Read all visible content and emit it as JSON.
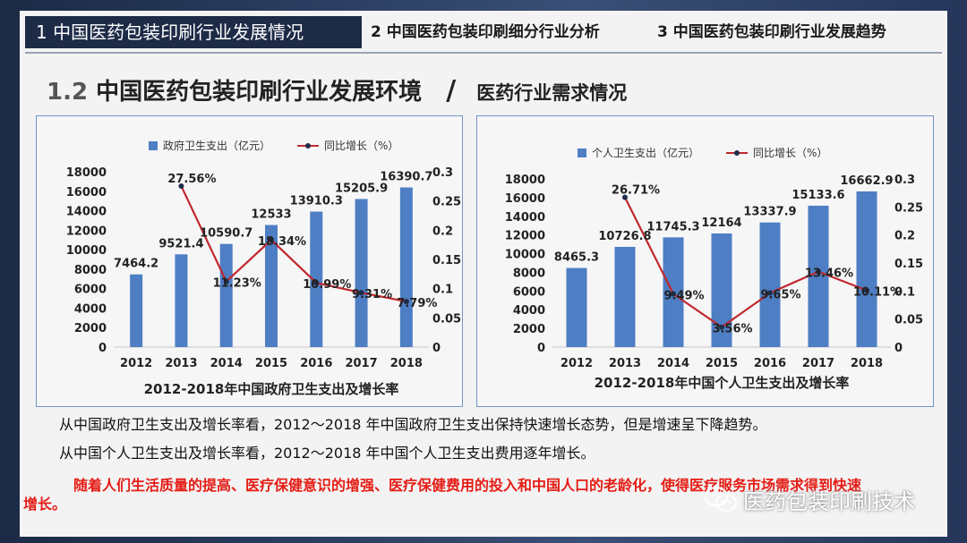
{
  "header": {
    "tabs": [
      {
        "label": "1  中国医药包装印刷行业发展情况",
        "active": true
      },
      {
        "label": "2  中国医药包装印刷细分行业分析",
        "active": false
      },
      {
        "label": "3  中国医药包装印刷行业发展趋势",
        "active": false
      }
    ]
  },
  "section": {
    "number": "1.2",
    "title": "中国医药包装印刷行业发展环境",
    "slash": "/",
    "subtitle": "医药行业需求情况"
  },
  "colors": {
    "bar": "#4e7ec4",
    "line": "#c0282d",
    "marker": "#1f2d4a",
    "emphasis": "#e51c15",
    "header_bar": "#1d2b47"
  },
  "chart_data": [
    {
      "type": "bar",
      "title": "2012-2018年中国政府卫生支出及增长率",
      "categories": [
        "2012",
        "2013",
        "2014",
        "2015",
        "2016",
        "2017",
        "2018"
      ],
      "series": [
        {
          "name": "政府卫生支出（亿元）",
          "type": "bar",
          "axis": "left",
          "values": [
            7464.2,
            9521.4,
            10590.7,
            12533,
            13910.3,
            15205.9,
            16390.7
          ],
          "labels": [
            "7464.2",
            "9521.4",
            "10590.7",
            "12533",
            "13910.3",
            "15205.9",
            "16390.7"
          ]
        },
        {
          "name": "同比增长（%）",
          "type": "line",
          "axis": "right",
          "values": [
            null,
            0.2756,
            0.1123,
            0.1834,
            0.1099,
            0.0931,
            0.0779
          ],
          "labels": [
            null,
            "27.56%",
            "11.23%",
            "18.34%",
            "10.99%",
            "9.31%",
            "7.79%"
          ]
        }
      ],
      "ylim": [
        0,
        18000
      ],
      "yticks": [
        "0",
        "2000",
        "4000",
        "6000",
        "8000",
        "10000",
        "12000",
        "14000",
        "16000",
        "18000"
      ],
      "y2lim": [
        0,
        0.3
      ],
      "y2ticks": [
        "0",
        "0.05",
        "0.1",
        "0.15",
        "0.2",
        "0.25",
        "0.3"
      ],
      "legend": "top-center",
      "grid": false
    },
    {
      "type": "bar",
      "title": "2012-2018年中国个人卫生支出及增长率",
      "categories": [
        "2012",
        "2013",
        "2014",
        "2015",
        "2016",
        "2017",
        "2018"
      ],
      "series": [
        {
          "name": "个人卫生支出（亿元）",
          "type": "bar",
          "axis": "left",
          "values": [
            8465.3,
            10726.8,
            11745.3,
            12164,
            13337.9,
            15133.6,
            16662.9
          ],
          "labels": [
            "8465.3",
            "10726.8",
            "11745.3",
            "12164",
            "13337.9",
            "15133.6",
            "16662.9"
          ]
        },
        {
          "name": "同比增长（%）",
          "type": "line",
          "axis": "right",
          "values": [
            null,
            0.2671,
            0.0949,
            0.0356,
            0.0965,
            0.1346,
            0.1011
          ],
          "labels": [
            null,
            "26.71%",
            "9.49%",
            "3.56%",
            "9.65%",
            "13.46%",
            "10.11%"
          ]
        }
      ],
      "ylim": [
        0,
        18000
      ],
      "yticks": [
        "0",
        "2000",
        "4000",
        "6000",
        "8000",
        "10000",
        "12000",
        "14000",
        "16000",
        "18000"
      ],
      "y2lim": [
        0,
        0.3
      ],
      "y2ticks": [
        "0",
        "0.05",
        "0.1",
        "0.15",
        "0.2",
        "0.25",
        "0.3"
      ],
      "legend": "top-center",
      "grid": false
    }
  ],
  "text": {
    "line1": "从中国政府卫生支出及增长率看，2012～2018 年中国政府卫生支出保持快速增长态势，但是增速呈下降趋势。",
    "line2": "从中国个人卫生支出及增长率看，2012～2018 年中国个人卫生支出费用逐年增长。",
    "emphasis_main": "随着人们生活质量的提高、医疗保健意识的增强、医疗保健费用的投入和中国人口的老龄化，使得医疗服务市场需求得到快速",
    "emphasis_end": "增长。"
  },
  "watermark": {
    "icon": "wechat-icon",
    "label": "医药包装印刷技术"
  }
}
